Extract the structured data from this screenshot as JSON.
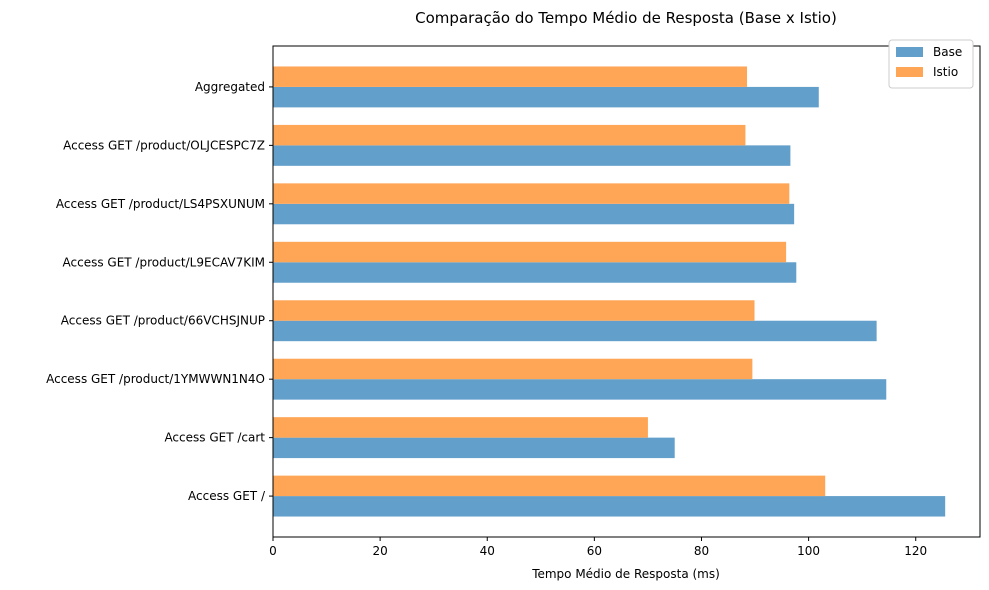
{
  "chart_data": {
    "type": "bar",
    "orientation": "horizontal",
    "title": "Comparação do Tempo Médio de Resposta (Base x Istio)",
    "xlabel": "Tempo Médio de Resposta (ms)",
    "ylabel": "",
    "xlim": [
      0,
      132
    ],
    "x_ticks": [
      0,
      20,
      40,
      60,
      80,
      100,
      120
    ],
    "grid": false,
    "legend_position": "top-right",
    "categories": [
      "Access GET /",
      "Access GET /cart",
      "Access GET /product/1YMWWN1N4O",
      "Access GET /product/66VCHSJNUP",
      "Access GET /product/L9ECAV7KIM",
      "Access GET /product/LS4PSXUNUM",
      "Access GET /product/OLJCESPC7Z",
      "Aggregated"
    ],
    "series": [
      {
        "name": "Base",
        "color": "#629fca",
        "values": [
          125.5,
          75.0,
          114.5,
          112.7,
          97.7,
          97.3,
          96.6,
          101.9
        ]
      },
      {
        "name": "Istio",
        "color": "#ffa556",
        "values": [
          103.1,
          70.0,
          89.5,
          89.9,
          95.8,
          96.4,
          88.2,
          88.5
        ]
      }
    ]
  }
}
